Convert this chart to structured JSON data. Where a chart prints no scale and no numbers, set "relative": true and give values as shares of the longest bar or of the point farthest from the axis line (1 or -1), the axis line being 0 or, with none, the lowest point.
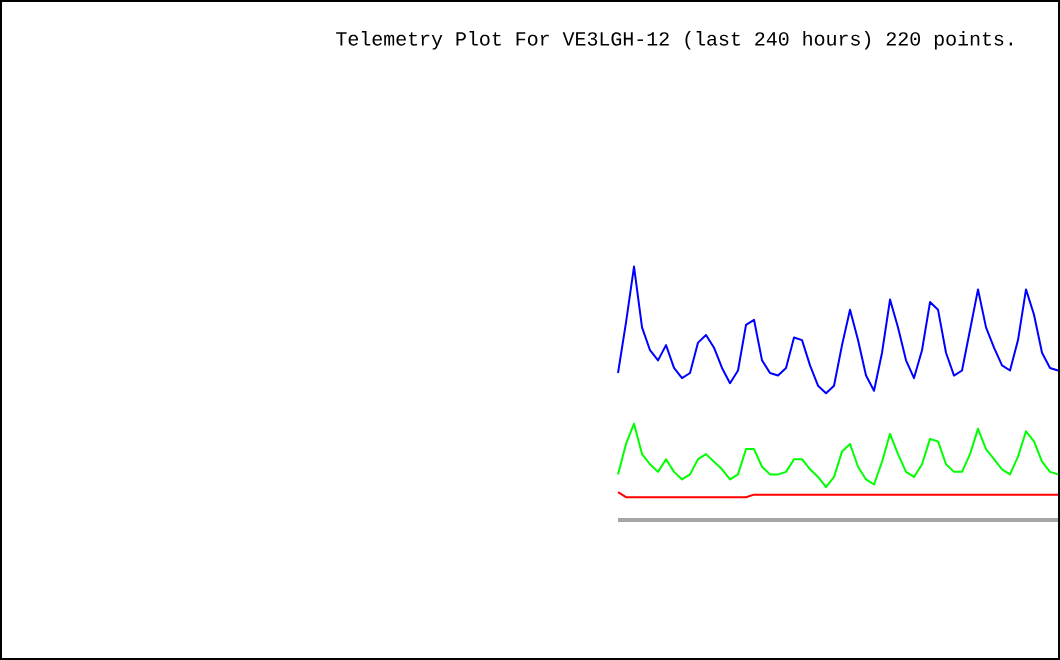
{
  "chart_data": {
    "type": "line",
    "title": "Telemetry Plot For VE3LGH-12 (last 240 hours) 220 points.",
    "relative": true,
    "categories": [
      null,
      null,
      null,
      null,
      null,
      null,
      null,
      null,
      null,
      null,
      null,
      null,
      null,
      null,
      null,
      null,
      null,
      null,
      null,
      null,
      null,
      null,
      null,
      null,
      null,
      null,
      null,
      null,
      null,
      null,
      null,
      null,
      null,
      null,
      null,
      null,
      null,
      null,
      null,
      null,
      null,
      null,
      null,
      null,
      null,
      null,
      null,
      null,
      null,
      null,
      null,
      null,
      null,
      null,
      null,
      null
    ],
    "series": [
      {
        "color": "#0000ff",
        "values": [
          0.58,
          0.78,
          1.0,
          0.76,
          0.67,
          0.63,
          0.69,
          0.6,
          0.56,
          0.58,
          0.7,
          0.73,
          0.68,
          0.6,
          0.54,
          0.59,
          0.77,
          0.79,
          0.63,
          0.58,
          0.57,
          0.6,
          0.72,
          0.71,
          0.61,
          0.53,
          0.5,
          0.53,
          0.69,
          0.83,
          0.71,
          0.57,
          0.51,
          0.66,
          0.87,
          0.76,
          0.63,
          0.56,
          0.67,
          0.86,
          0.83,
          0.66,
          0.57,
          0.59,
          0.75,
          0.91,
          0.76,
          0.68,
          0.61,
          0.59,
          0.71,
          0.91,
          0.81,
          0.66,
          0.6,
          0.59
        ]
      },
      {
        "color": "#00ff00",
        "values": [
          0.18,
          0.3,
          0.38,
          0.26,
          0.22,
          0.19,
          0.24,
          0.19,
          0.16,
          0.18,
          0.24,
          0.26,
          0.23,
          0.2,
          0.16,
          0.18,
          0.28,
          0.28,
          0.21,
          0.18,
          0.18,
          0.19,
          0.24,
          0.24,
          0.2,
          0.17,
          0.13,
          0.17,
          0.27,
          0.3,
          0.21,
          0.16,
          0.14,
          0.23,
          0.34,
          0.26,
          0.19,
          0.17,
          0.22,
          0.32,
          0.31,
          0.22,
          0.19,
          0.19,
          0.26,
          0.36,
          0.28,
          0.24,
          0.2,
          0.18,
          0.25,
          0.35,
          0.31,
          0.23,
          0.19,
          0.18
        ]
      },
      {
        "color": "#ff0000",
        "values": [
          0.11,
          0.09,
          0.09,
          0.09,
          0.09,
          0.09,
          0.09,
          0.09,
          0.09,
          0.09,
          0.09,
          0.09,
          0.09,
          0.09,
          0.09,
          0.09,
          0.09,
          0.1,
          0.1,
          0.1,
          0.1,
          0.1,
          0.1,
          0.1,
          0.1,
          0.1,
          0.1,
          0.1,
          0.1,
          0.1,
          0.1,
          0.1,
          0.1,
          0.1,
          0.1,
          0.1,
          0.1,
          0.1,
          0.1,
          0.1,
          0.1,
          0.1,
          0.1,
          0.1,
          0.1,
          0.1,
          0.1,
          0.1,
          0.1,
          0.1,
          0.1,
          0.1,
          0.1,
          0.1,
          0.1,
          0.1
        ]
      }
    ]
  }
}
